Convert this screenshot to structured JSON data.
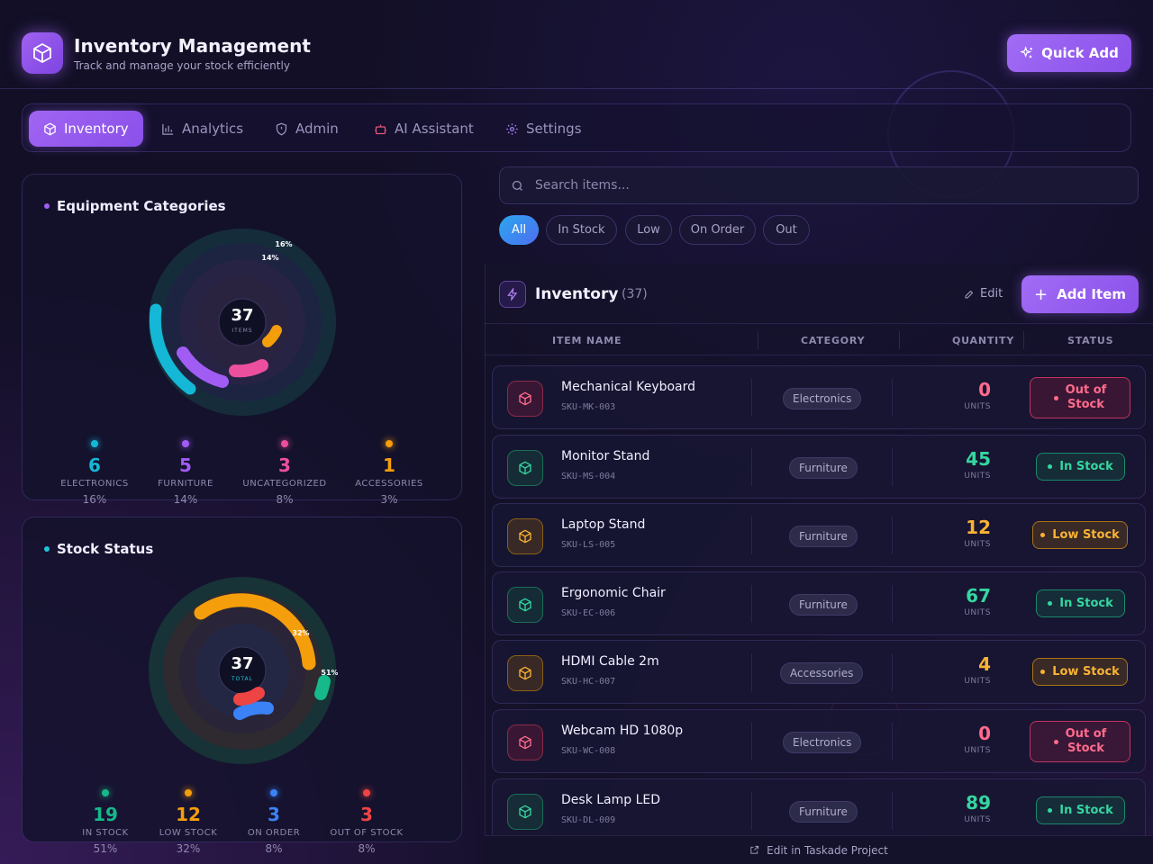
{
  "header": {
    "title": "Inventory Management",
    "subtitle": "Track and manage your stock efficiently",
    "quick_add": "Quick Add"
  },
  "nav": {
    "tabs": [
      {
        "label": "Inventory",
        "icon": "box-icon",
        "active": true
      },
      {
        "label": "Analytics",
        "icon": "bar-chart-icon"
      },
      {
        "label": "Admin",
        "icon": "shield-icon"
      },
      {
        "label": "AI Assistant",
        "icon": "robot-icon"
      },
      {
        "label": "Settings",
        "icon": "gear-icon"
      }
    ]
  },
  "categories": {
    "title": "Equipment Categories",
    "center_value": "37",
    "center_label": "ITEMS",
    "ring_labels": [
      "16%",
      "14%"
    ],
    "items": [
      {
        "value": "6",
        "label": "ELECTRONICS",
        "pct": "16%",
        "color": "#14b8d6"
      },
      {
        "value": "5",
        "label": "FURNITURE",
        "pct": "14%",
        "color": "#a15cf4"
      },
      {
        "value": "3",
        "label": "UNCATEGORIZED",
        "pct": "8%",
        "color": "#ec4f9d"
      },
      {
        "value": "1",
        "label": "ACCESSORIES",
        "pct": "3%",
        "color": "#f59e0b"
      }
    ]
  },
  "stock": {
    "title": "Stock Status",
    "center_value": "37",
    "center_label": "TOTAL",
    "ring_labels": [
      "32%",
      "51%"
    ],
    "items": [
      {
        "value": "19",
        "label": "IN STOCK",
        "pct": "51%",
        "color": "#16b98a"
      },
      {
        "value": "12",
        "label": "LOW STOCK",
        "pct": "32%",
        "color": "#f59e0b"
      },
      {
        "value": "3",
        "label": "ON ORDER",
        "pct": "8%",
        "color": "#3b82f6"
      },
      {
        "value": "3",
        "label": "OUT OF STOCK",
        "pct": "8%",
        "color": "#ef4444"
      }
    ]
  },
  "search": {
    "placeholder": "Search items..."
  },
  "filters": [
    "All",
    "In Stock",
    "Low",
    "On Order",
    "Out"
  ],
  "inventory": {
    "title": "Inventory",
    "count": "(37)",
    "edit": "Edit",
    "add_item": "Add Item",
    "columns": [
      "ITEM NAME",
      "CATEGORY",
      "QUANTITY",
      "STATUS"
    ],
    "units_label": "UNITS",
    "rows": [
      {
        "name": "Mechanical Keyboard",
        "sku": "SKU-MK-003",
        "category": "Electronics",
        "qty": "0",
        "status": "Out of Stock",
        "status_line1": "Out of",
        "status_line2": "Stock",
        "kind": "out"
      },
      {
        "name": "Monitor Stand",
        "sku": "SKU-MS-004",
        "category": "Furniture",
        "qty": "45",
        "status": "In Stock",
        "kind": "in"
      },
      {
        "name": "Laptop Stand",
        "sku": "SKU-LS-005",
        "category": "Furniture",
        "qty": "12",
        "status": "Low Stock",
        "kind": "low"
      },
      {
        "name": "Ergonomic Chair",
        "sku": "SKU-EC-006",
        "category": "Furniture",
        "qty": "67",
        "status": "In Stock",
        "kind": "in"
      },
      {
        "name": "HDMI Cable 2m",
        "sku": "SKU-HC-007",
        "category": "Accessories",
        "qty": "4",
        "status": "Low Stock",
        "kind": "low"
      },
      {
        "name": "Webcam HD 1080p",
        "sku": "SKU-WC-008",
        "category": "Electronics",
        "qty": "0",
        "status": "Out of Stock",
        "status_line1": "Out of",
        "status_line2": "Stock",
        "kind": "out"
      },
      {
        "name": "Desk Lamp LED",
        "sku": "SKU-DL-009",
        "category": "Furniture",
        "qty": "89",
        "status": "In Stock",
        "kind": "in"
      }
    ]
  },
  "footer": {
    "link": "Edit in Taskade Project"
  },
  "colors": {
    "accent": "#9b5cf6",
    "in": "#35d6a0",
    "low": "#f9b334",
    "out": "#ff6b8d"
  }
}
